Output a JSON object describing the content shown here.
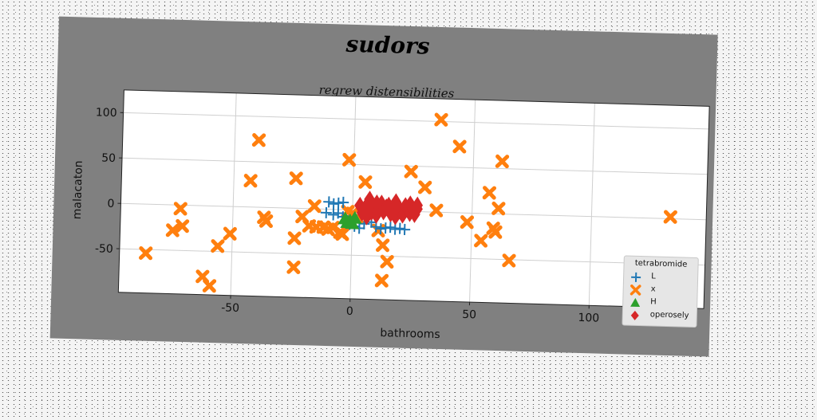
{
  "chart_data": {
    "type": "scatter",
    "title": "sudors",
    "subtitle": "regrew distensibilities",
    "xlabel": "bathrooms",
    "ylabel": "malacaton",
    "xlim": [
      -97,
      148
    ],
    "ylim": [
      -98,
      125
    ],
    "xticks": [
      -50,
      0,
      50,
      100
    ],
    "yticks": [
      -50,
      0,
      50,
      100
    ],
    "grid": true,
    "legend": {
      "title": "tetrabromide",
      "position": "bottom-right"
    },
    "series": [
      {
        "name": "L",
        "marker": "plus",
        "color": "#1f77b4",
        "points": [
          [
            -10,
            8
          ],
          [
            -8,
            6
          ],
          [
            -6,
            7
          ],
          [
            -4,
            8
          ],
          [
            -11,
            -4
          ],
          [
            -8,
            -6
          ],
          [
            -6,
            -4
          ],
          [
            -4,
            -8
          ],
          [
            -2,
            -12
          ],
          [
            -1,
            -16
          ],
          [
            1,
            -18
          ],
          [
            3,
            -20
          ],
          [
            5,
            -15
          ],
          [
            8,
            -13
          ],
          [
            10,
            -18
          ],
          [
            12,
            -20
          ],
          [
            14,
            -19
          ],
          [
            16,
            -18
          ],
          [
            18,
            -20
          ],
          [
            20,
            -19
          ],
          [
            22,
            -20
          ]
        ]
      },
      {
        "name": "x",
        "marker": "x",
        "color": "#ff7f0e",
        "points": [
          [
            36,
            102
          ],
          [
            -40,
            74
          ],
          [
            44,
            73
          ],
          [
            62,
            58
          ],
          [
            -2,
            55
          ],
          [
            24,
            44
          ],
          [
            5,
            31
          ],
          [
            -24,
            33
          ],
          [
            -43,
            29
          ],
          [
            30,
            27
          ],
          [
            57,
            23
          ],
          [
            -16,
            3
          ],
          [
            -72,
            -4
          ],
          [
            -71,
            -23
          ],
          [
            -75,
            -28
          ],
          [
            -51,
            -30
          ],
          [
            -56,
            -44
          ],
          [
            -37,
            -11
          ],
          [
            -36,
            -15
          ],
          [
            -21,
            -9
          ],
          [
            -18,
            -19
          ],
          [
            -15,
            -20
          ],
          [
            -12,
            -20
          ],
          [
            -10,
            -22
          ],
          [
            -8,
            -20
          ],
          [
            -5,
            -25
          ],
          [
            -4,
            -27
          ],
          [
            11,
            -22
          ],
          [
            13,
            -38
          ],
          [
            15,
            -56
          ],
          [
            13,
            -77
          ],
          [
            -24,
            -33
          ],
          [
            -24,
            -65
          ],
          [
            -62,
            -78
          ],
          [
            -59,
            -88
          ],
          [
            -86,
            -54
          ],
          [
            48,
            -10
          ],
          [
            59,
            -16
          ],
          [
            60,
            -20
          ],
          [
            54,
            -30
          ],
          [
            61,
            6
          ],
          [
            66,
            -51
          ],
          [
            35,
            2
          ],
          [
            133,
            2
          ],
          [
            0,
            -4
          ],
          [
            -2,
            -2
          ],
          [
            2,
            -8
          ]
        ]
      },
      {
        "name": "H",
        "marker": "triangle",
        "color": "#2ca02c",
        "points": [
          [
            -3,
            -10
          ],
          [
            -1,
            -12
          ],
          [
            1,
            -9
          ],
          [
            -2,
            -14
          ],
          [
            0,
            -15
          ]
        ]
      },
      {
        "name": "operosely",
        "marker": "diamond",
        "color": "#d62728",
        "points": [
          [
            3,
            5
          ],
          [
            5,
            2
          ],
          [
            6,
            6
          ],
          [
            7,
            12
          ],
          [
            8,
            -2
          ],
          [
            9,
            4
          ],
          [
            10,
            -5
          ],
          [
            11,
            3
          ],
          [
            12,
            8
          ],
          [
            13,
            -1
          ],
          [
            14,
            4
          ],
          [
            15,
            6
          ],
          [
            16,
            -3
          ],
          [
            17,
            2
          ],
          [
            18,
            10
          ],
          [
            18,
            -6
          ],
          [
            19,
            5
          ],
          [
            20,
            0
          ],
          [
            21,
            -4
          ],
          [
            22,
            6
          ],
          [
            23,
            2
          ],
          [
            24,
            -2
          ],
          [
            24,
            8
          ],
          [
            25,
            4
          ],
          [
            26,
            -3
          ],
          [
            27,
            3
          ],
          [
            27,
            7
          ],
          [
            10,
            8
          ],
          [
            4,
            -3
          ],
          [
            6,
            -7
          ]
        ]
      }
    ]
  }
}
